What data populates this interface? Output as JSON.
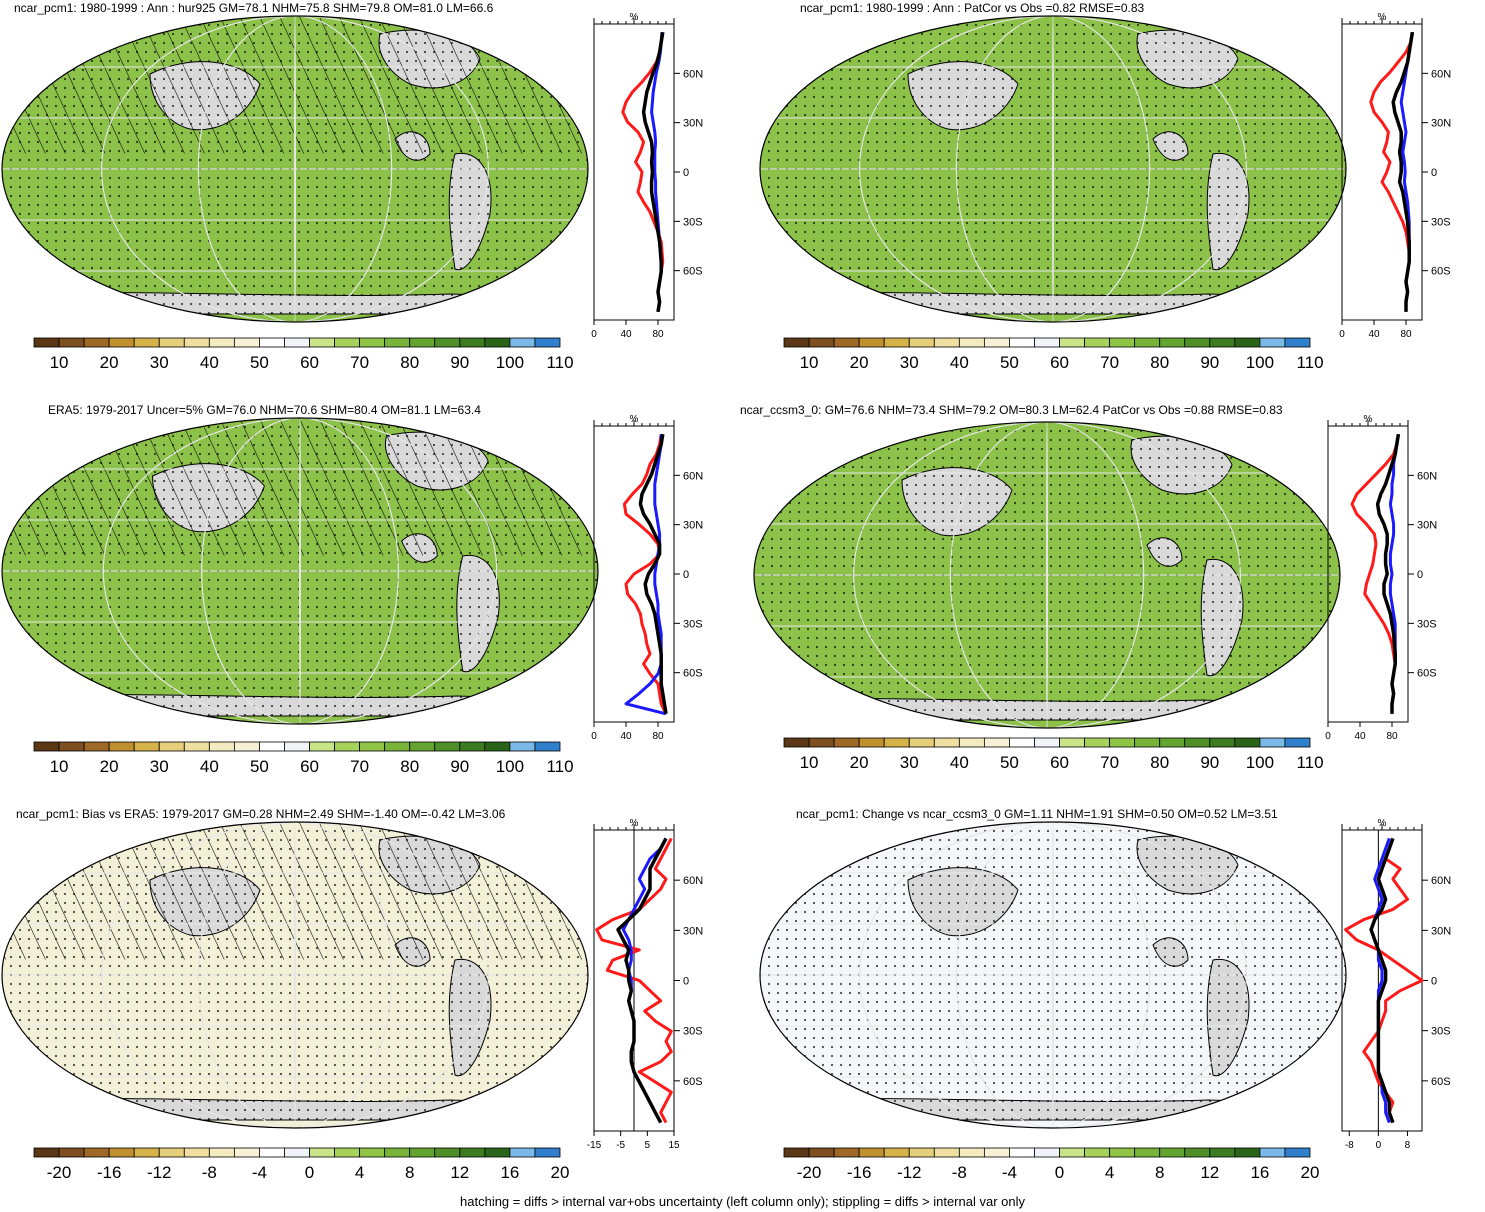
{
  "footnote": "hatching = diffs > internal var+obs uncertainty (left column only); stippling = diffs > internal var only",
  "colors": {
    "abs_scale": [
      "#5b3716",
      "#7d4e1f",
      "#9e6826",
      "#c0902e",
      "#d6b24a",
      "#e6cf7a",
      "#efe0a2",
      "#f4ebc0",
      "#f7f1d6",
      "#ffffff",
      "#f0f4f8",
      "#c9e489",
      "#a6d15a",
      "#8fc446",
      "#78b43a",
      "#63a32f",
      "#4f8f27",
      "#3c7b1f",
      "#2a6418",
      "#7ab8e8",
      "#2f7fcc"
    ],
    "bias_scale": [
      "#5b3716",
      "#7d4e1f",
      "#9e6826",
      "#c0902e",
      "#d6b24a",
      "#e6cf7a",
      "#efe0a2",
      "#f4ebc0",
      "#f7f1d6",
      "#ffffff",
      "#f0f4f8",
      "#c9e489",
      "#a6d15a",
      "#8fc446",
      "#78b43a",
      "#63a32f",
      "#4f8f27",
      "#3c7b1f",
      "#2a6418",
      "#7ab8e8",
      "#2f7fcc"
    ],
    "land_gray": "#d9d9d9",
    "red": "#ff1a1a",
    "blue": "#1a1aff",
    "black": "#000000"
  },
  "panels": [
    {
      "title": "ncar_pcm1: 1980-1999 : Ann : hur925 GM=78.1 NHM=75.8 SHM=79.8 OM=81.0 LM=66.6",
      "map_fill": "#8cc24a",
      "hatched": true,
      "colorbar_labels": [
        "10",
        "20",
        "30",
        "40",
        "50",
        "60",
        "70",
        "80",
        "90",
        "100",
        "110"
      ],
      "profile": {
        "y_ticks": [
          "60N",
          "30N",
          "0",
          "30S",
          "60S"
        ],
        "x_ticks": [
          "0",
          "40",
          "80"
        ],
        "x_unit": "%",
        "x_range": [
          0,
          100
        ],
        "zero_line": false,
        "red": [
          85,
          84,
          82,
          78,
          70,
          60,
          48,
          40,
          36,
          42,
          55,
          62,
          58,
          52,
          60,
          58,
          55,
          62,
          70,
          75,
          80,
          84,
          85,
          86,
          84,
          82,
          80,
          82,
          80
        ],
        "blue": [
          85,
          84,
          83,
          81,
          78,
          76,
          74,
          73,
          72,
          74,
          76,
          77,
          76,
          76,
          76,
          77,
          77,
          78,
          79,
          80,
          81,
          82,
          83,
          84,
          84,
          82,
          80,
          82,
          80
        ],
        "black": [
          86,
          84,
          82,
          79,
          74,
          70,
          66,
          64,
          62,
          64,
          68,
          72,
          73,
          72,
          73,
          72,
          72,
          74,
          76,
          78,
          80,
          82,
          83,
          84,
          84,
          82,
          80,
          82,
          80
        ]
      }
    },
    {
      "title": "ncar_pcm1: 1980-1999 : Ann : PatCor vs Obs =0.82 RMSE=0.83",
      "map_fill": "#8cc24a",
      "hatched": false,
      "colorbar_labels": [
        "10",
        "20",
        "30",
        "40",
        "50",
        "60",
        "70",
        "80",
        "90",
        "100",
        "110"
      ],
      "profile": {
        "y_ticks": [
          "60N",
          "30N",
          "0",
          "30S",
          "60S"
        ],
        "x_ticks": [
          "0",
          "40",
          "80"
        ],
        "x_unit": "%",
        "x_range": [
          0,
          100
        ],
        "zero_line": false,
        "red": [
          88,
          86,
          80,
          70,
          60,
          48,
          40,
          36,
          40,
          50,
          58,
          56,
          52,
          60,
          56,
          50,
          58,
          64,
          70,
          76,
          80,
          82,
          84,
          84,
          82,
          80,
          82,
          80,
          80
        ],
        "blue": [
          88,
          86,
          84,
          82,
          80,
          78,
          76,
          74,
          76,
          78,
          80,
          78,
          76,
          78,
          79,
          78,
          80,
          82,
          83,
          84,
          84,
          84,
          84,
          84,
          82,
          80,
          82,
          80,
          80
        ],
        "black": [
          88,
          86,
          84,
          82,
          78,
          74,
          68,
          64,
          66,
          70,
          74,
          74,
          72,
          74,
          74,
          72,
          76,
          78,
          80,
          82,
          83,
          84,
          84,
          84,
          82,
          80,
          82,
          80,
          80
        ]
      }
    },
    {
      "title": "ERA5: 1979-2017 Uncer=5% GM=76.0 NHM=70.6 SHM=80.4 OM=81.1 LM=63.4",
      "map_fill": "#8cc24a",
      "hatched": true,
      "colorbar_labels": [
        "10",
        "20",
        "30",
        "40",
        "50",
        "60",
        "70",
        "80",
        "90",
        "100",
        "110"
      ],
      "profile": {
        "y_ticks": [
          "60N",
          "30N",
          "0",
          "30S",
          "60S"
        ],
        "x_ticks": [
          "0",
          "40",
          "80"
        ],
        "x_unit": "%",
        "x_range": [
          0,
          100
        ],
        "zero_line": false,
        "red": [
          84,
          82,
          78,
          70,
          66,
          60,
          48,
          38,
          40,
          56,
          70,
          80,
          82,
          70,
          50,
          40,
          42,
          52,
          58,
          60,
          64,
          66,
          70,
          62,
          70,
          80,
          82,
          84,
          90
        ],
        "blue": [
          84,
          84,
          82,
          80,
          78,
          76,
          76,
          76,
          78,
          80,
          82,
          82,
          80,
          78,
          76,
          76,
          78,
          80,
          80,
          82,
          84,
          84,
          84,
          84,
          80,
          70,
          56,
          40,
          90
        ],
        "black": [
          86,
          84,
          80,
          76,
          72,
          66,
          60,
          58,
          62,
          70,
          76,
          82,
          82,
          76,
          68,
          64,
          66,
          72,
          76,
          78,
          80,
          82,
          84,
          84,
          84,
          84,
          86,
          88,
          90
        ]
      }
    },
    {
      "title": "ncar_ccsm3_0: GM=76.6 NHM=73.4 SHM=79.2 OM=80.3 LM=62.4 PatCor vs Obs =0.88 RMSE=0.83",
      "map_fill": "#8cc24a",
      "hatched": false,
      "colorbar_labels": [
        "10",
        "20",
        "30",
        "40",
        "50",
        "60",
        "70",
        "80",
        "90",
        "100",
        "110"
      ],
      "profile": {
        "y_ticks": [
          "60N",
          "30N",
          "0",
          "30S",
          "60S"
        ],
        "x_ticks": [
          "0",
          "40",
          "80"
        ],
        "x_unit": "%",
        "x_range": [
          0,
          100
        ],
        "zero_line": false,
        "red": [
          88,
          86,
          82,
          72,
          60,
          48,
          36,
          30,
          36,
          48,
          58,
          60,
          58,
          56,
          52,
          48,
          46,
          54,
          62,
          70,
          76,
          80,
          82,
          84,
          82,
          80,
          82,
          80,
          80
        ],
        "blue": [
          88,
          86,
          84,
          82,
          82,
          80,
          80,
          78,
          80,
          82,
          82,
          80,
          78,
          78,
          80,
          78,
          78,
          80,
          82,
          84,
          84,
          84,
          84,
          84,
          82,
          80,
          82,
          80,
          80
        ],
        "black": [
          88,
          86,
          84,
          80,
          76,
          72,
          66,
          62,
          64,
          70,
          74,
          74,
          72,
          72,
          74,
          70,
          70,
          74,
          78,
          80,
          82,
          83,
          84,
          84,
          82,
          80,
          82,
          80,
          80
        ]
      }
    },
    {
      "title": "ncar_pcm1: Bias vs ERA5: 1979-2017 GM=0.28 NHM=2.49 SHM=-1.40 OM=-0.42 LM=3.06",
      "map_fill": "#f3f0d8",
      "hatched": true,
      "colorbar_labels": [
        "-20",
        "-16",
        "-12",
        "-8",
        "-4",
        "0",
        "4",
        "8",
        "12",
        "16",
        "20"
      ],
      "profile": {
        "y_ticks": [
          "60N",
          "30N",
          "0",
          "30S",
          "60S"
        ],
        "x_ticks": [
          "-15",
          "-5",
          "5",
          "15"
        ],
        "x_unit": "%",
        "x_range": [
          -15,
          15
        ],
        "zero_line": true,
        "red": [
          14,
          12,
          10,
          8,
          12,
          10,
          6,
          2,
          -8,
          -14,
          -12,
          2,
          -8,
          -10,
          2,
          6,
          10,
          4,
          8,
          14,
          12,
          14,
          10,
          2,
          8,
          14,
          12,
          10,
          12
        ],
        "blue": [
          12,
          10,
          6,
          4,
          2,
          4,
          2,
          0,
          -2,
          -4,
          -2,
          -1,
          -1,
          -2,
          -1,
          -1,
          -2,
          -1,
          0,
          0,
          0,
          -1,
          -1,
          0,
          2,
          4,
          6,
          8,
          10
        ],
        "black": [
          12,
          10,
          8,
          6,
          6,
          6,
          4,
          2,
          -2,
          -6,
          -4,
          -2,
          -3,
          -2,
          -2,
          -1,
          -2,
          -1,
          0,
          0,
          0,
          -1,
          -1,
          0,
          2,
          4,
          6,
          8,
          10
        ]
      }
    },
    {
      "title": "ncar_pcm1: Change vs ncar_ccsm3_0 GM=1.11 NHM=1.91 SHM=0.50 OM=0.52 LM=3.51",
      "map_fill": "#f5f6fa",
      "hatched": false,
      "colorbar_labels": [
        "-20",
        "-16",
        "-12",
        "-8",
        "-4",
        "0",
        "4",
        "8",
        "12",
        "16",
        "20"
      ],
      "profile": {
        "y_ticks": [
          "60N",
          "30N",
          "0",
          "30S",
          "60S"
        ],
        "x_ticks": [
          "-8",
          "0",
          "8"
        ],
        "x_unit": "%",
        "x_range": [
          -10,
          12
        ],
        "zero_line": true,
        "red": [
          4,
          3,
          2,
          6,
          4,
          6,
          8,
          4,
          -4,
          -9,
          -6,
          0,
          4,
          8,
          12,
          6,
          2,
          2,
          1,
          0,
          -2,
          -4,
          -2,
          -1,
          0,
          2,
          4,
          3,
          4
        ],
        "blue": [
          3,
          2,
          1,
          0,
          -1,
          0,
          1,
          0,
          -1,
          -2,
          -1,
          0,
          0,
          1,
          1,
          0,
          0,
          0,
          0,
          0,
          0,
          0,
          0,
          0,
          1,
          1,
          2,
          2,
          3
        ],
        "black": [
          4,
          3,
          2,
          1,
          0,
          1,
          2,
          1,
          -1,
          -2,
          -1,
          0,
          1,
          2,
          2,
          1,
          0,
          0,
          0,
          0,
          0,
          0,
          0,
          0,
          1,
          2,
          3,
          3,
          4
        ]
      }
    }
  ]
}
